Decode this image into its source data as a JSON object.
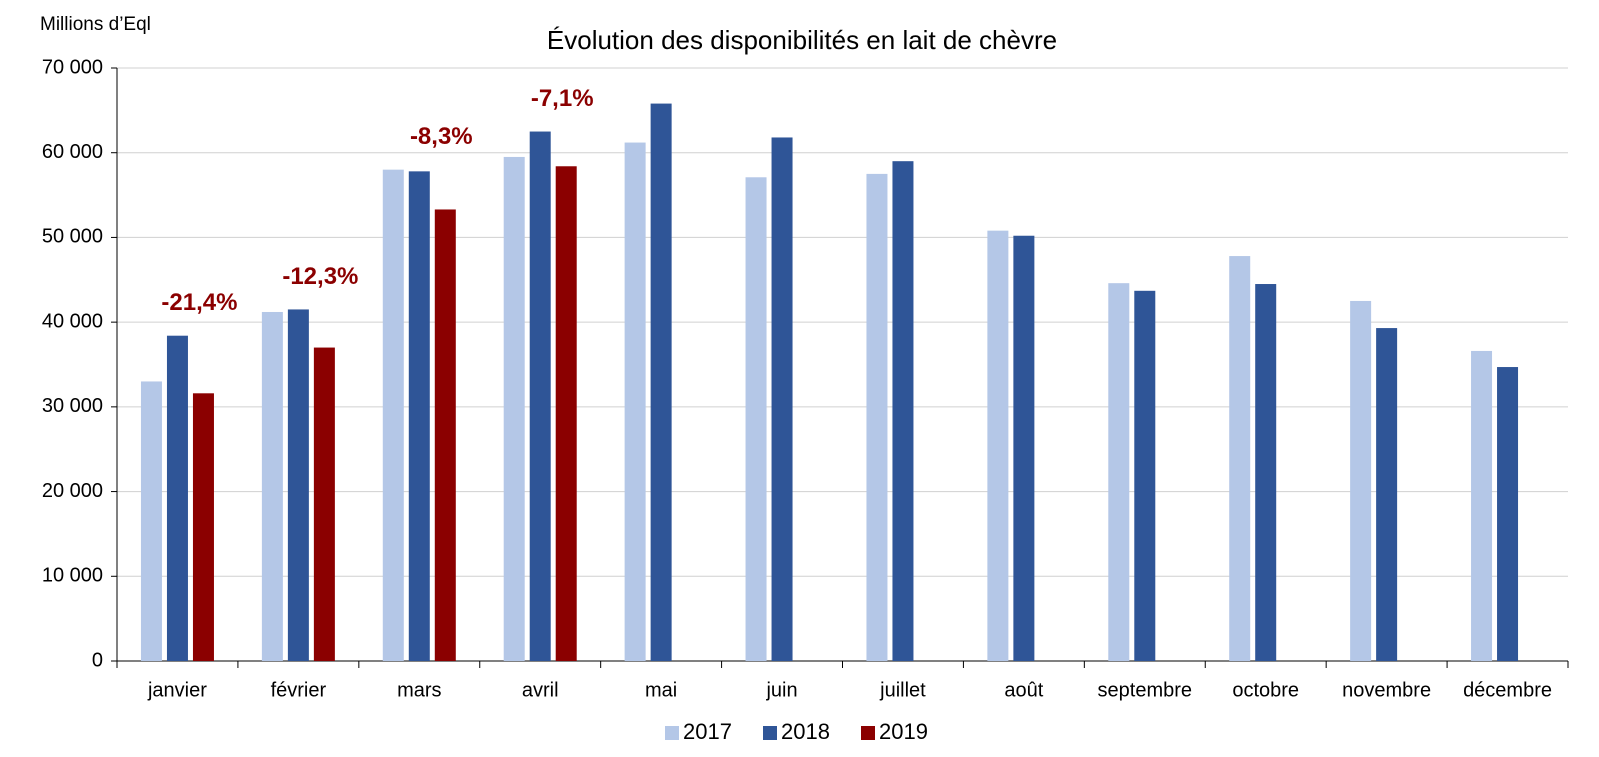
{
  "chart_data": {
    "type": "bar",
    "title": "Évolution des disponibilités en lait de chèvre",
    "y_axis_label": "Millions d’Eql",
    "categories": [
      "janvier",
      "février",
      "mars",
      "avril",
      "mai",
      "juin",
      "juillet",
      "août",
      "septembre",
      "octobre",
      "novembre",
      "décembre"
    ],
    "series": [
      {
        "name": "2017",
        "color": "#b4c7e7",
        "values": [
          33000,
          41200,
          58000,
          59500,
          61200,
          57100,
          57500,
          50800,
          44600,
          47800,
          42500,
          36600
        ]
      },
      {
        "name": "2018",
        "color": "#2f5597",
        "values": [
          38400,
          41500,
          57800,
          62500,
          65800,
          61800,
          59000,
          50200,
          43700,
          44500,
          39300,
          34700
        ]
      },
      {
        "name": "2019",
        "color": "#8b0000",
        "values": [
          31600,
          37000,
          53300,
          58400,
          null,
          null,
          null,
          null,
          null,
          null,
          null,
          null
        ]
      }
    ],
    "annotations": [
      {
        "text": "-21,4%",
        "category": "janvier"
      },
      {
        "text": "-12,3%",
        "category": "février"
      },
      {
        "text": "-8,3%",
        "category": "mars"
      },
      {
        "text": "-7,1%",
        "category": "avril"
      }
    ],
    "annotation_color": "#8b0000",
    "ylim": [
      0,
      70000
    ],
    "yticks": [
      0,
      {
        "value": 10000,
        "label": "10 000"
      },
      {
        "value": 20000,
        "label": "20 000"
      },
      {
        "value": 30000,
        "label": "30 000"
      },
      {
        "value": 40000,
        "label": "40 000"
      },
      {
        "value": 50000,
        "label": "50 000"
      },
      {
        "value": 60000,
        "label": "60 000"
      },
      {
        "value": 70000,
        "label": "70 000"
      }
    ],
    "grid": true,
    "legend": "bottom"
  }
}
